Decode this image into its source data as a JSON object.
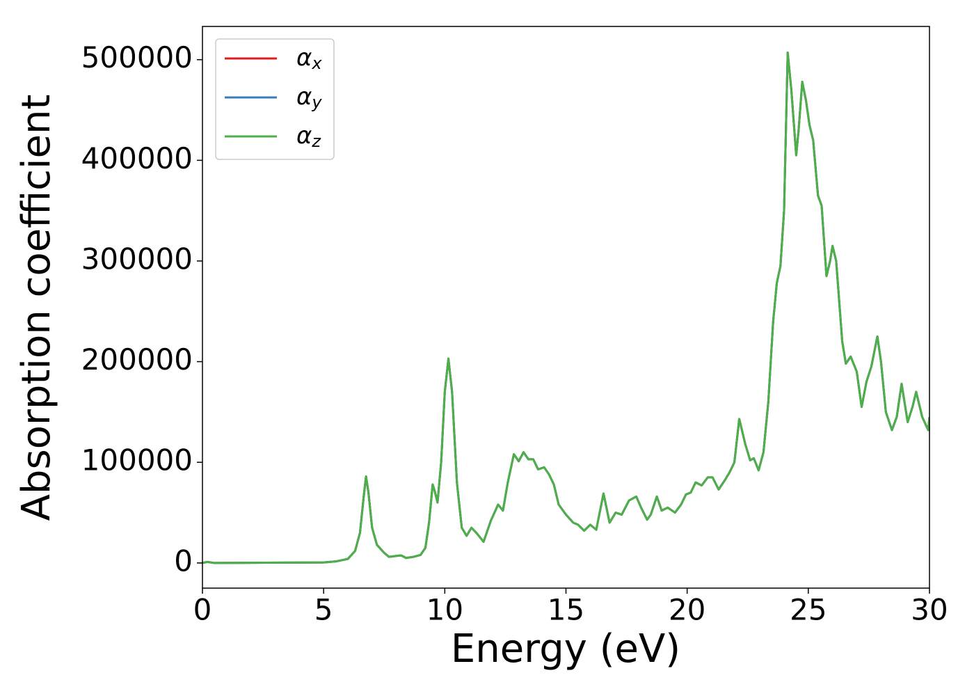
{
  "chart_data": {
    "type": "line",
    "xlabel": "Energy (eV)",
    "ylabel": "Absorption coefficient",
    "x": [
      0,
      0.2,
      0.5,
      5,
      5.5,
      6,
      6.3,
      6.5,
      6.65,
      6.75,
      6.85,
      7.0,
      7.2,
      7.5,
      7.7,
      8.0,
      8.2,
      8.4,
      8.7,
      9.0,
      9.2,
      9.35,
      9.5,
      9.6,
      9.7,
      9.85,
      10.0,
      10.15,
      10.3,
      10.5,
      10.7,
      10.9,
      11.1,
      11.3,
      11.6,
      11.9,
      12.2,
      12.4,
      12.6,
      12.85,
      13.05,
      13.25,
      13.45,
      13.65,
      13.85,
      14.1,
      14.3,
      14.5,
      14.7,
      15.0,
      15.3,
      15.5,
      15.75,
      16.0,
      16.25,
      16.55,
      16.8,
      17.05,
      17.3,
      17.6,
      17.9,
      18.1,
      18.35,
      18.5,
      18.75,
      18.95,
      19.2,
      19.5,
      19.75,
      19.95,
      20.15,
      20.35,
      20.6,
      20.85,
      21.05,
      21.3,
      21.55,
      21.75,
      21.95,
      22.15,
      22.4,
      22.6,
      22.75,
      22.95,
      23.15,
      23.35,
      23.55,
      23.7,
      23.85,
      24.0,
      24.15,
      24.3,
      24.5,
      24.6,
      24.75,
      24.9,
      25.05,
      25.2,
      25.4,
      25.55,
      25.75,
      25.9,
      26.0,
      26.15,
      26.4,
      26.55,
      26.75,
      27.0,
      27.2,
      27.4,
      27.6,
      27.85,
      28.0,
      28.2,
      28.45,
      28.65,
      28.85,
      29.1,
      29.3,
      29.45,
      29.7,
      29.95,
      30
    ],
    "series": [
      {
        "name": "αx",
        "color": "#e41a1c",
        "values": [
          0,
          1000,
          0,
          500,
          1500,
          4000,
          12000,
          30000,
          65000,
          86000,
          70000,
          35000,
          18000,
          10000,
          6000,
          7000,
          7500,
          5000,
          6000,
          8000,
          15000,
          40000,
          78000,
          70000,
          60000,
          100000,
          170000,
          203000,
          170000,
          80000,
          35000,
          27000,
          35000,
          30000,
          21000,
          42000,
          58000,
          52000,
          80000,
          108000,
          101000,
          110000,
          103000,
          103000,
          93000,
          95000,
          88000,
          78000,
          58000,
          48000,
          40000,
          38000,
          32000,
          38000,
          33000,
          69000,
          40000,
          50000,
          48000,
          62000,
          66000,
          55000,
          43000,
          48000,
          66000,
          52000,
          55000,
          50000,
          58000,
          68000,
          70000,
          80000,
          77000,
          85000,
          85000,
          73000,
          82000,
          90000,
          100000,
          143000,
          118000,
          102000,
          104000,
          92000,
          110000,
          160000,
          240000,
          278000,
          295000,
          350000,
          507000,
          470000,
          405000,
          430000,
          478000,
          460000,
          435000,
          420000,
          365000,
          355000,
          285000,
          300000,
          315000,
          300000,
          220000,
          198000,
          205000,
          190000,
          155000,
          180000,
          195000,
          225000,
          200000,
          150000,
          132000,
          145000,
          178000,
          140000,
          155000,
          170000,
          145000,
          132000,
          145000
        ]
      },
      {
        "name": "αy",
        "color": "#377eb8",
        "values": [
          0,
          1000,
          0,
          500,
          1500,
          4000,
          12000,
          30000,
          65000,
          86000,
          70000,
          35000,
          18000,
          10000,
          6000,
          7000,
          7500,
          5000,
          6000,
          8000,
          15000,
          40000,
          78000,
          70000,
          60000,
          100000,
          170000,
          203000,
          170000,
          80000,
          35000,
          27000,
          35000,
          30000,
          21000,
          42000,
          58000,
          52000,
          80000,
          108000,
          101000,
          110000,
          103000,
          103000,
          93000,
          95000,
          88000,
          78000,
          58000,
          48000,
          40000,
          38000,
          32000,
          38000,
          33000,
          69000,
          40000,
          50000,
          48000,
          62000,
          66000,
          55000,
          43000,
          48000,
          66000,
          52000,
          55000,
          50000,
          58000,
          68000,
          70000,
          80000,
          77000,
          85000,
          85000,
          73000,
          82000,
          90000,
          100000,
          143000,
          118000,
          102000,
          104000,
          92000,
          110000,
          160000,
          240000,
          278000,
          295000,
          350000,
          507000,
          470000,
          405000,
          430000,
          478000,
          460000,
          435000,
          420000,
          365000,
          355000,
          285000,
          300000,
          315000,
          300000,
          220000,
          198000,
          205000,
          190000,
          155000,
          180000,
          195000,
          225000,
          200000,
          150000,
          132000,
          145000,
          178000,
          140000,
          155000,
          170000,
          145000,
          132000,
          145000
        ]
      },
      {
        "name": "αz",
        "color": "#4daf4a",
        "values": [
          0,
          1000,
          0,
          500,
          1500,
          4000,
          12000,
          30000,
          65000,
          86000,
          70000,
          35000,
          18000,
          10000,
          6000,
          7000,
          7500,
          5000,
          6000,
          8000,
          15000,
          40000,
          78000,
          70000,
          60000,
          100000,
          170000,
          203000,
          170000,
          80000,
          35000,
          27000,
          35000,
          30000,
          21000,
          42000,
          58000,
          52000,
          80000,
          108000,
          101000,
          110000,
          103000,
          103000,
          93000,
          95000,
          88000,
          78000,
          58000,
          48000,
          40000,
          38000,
          32000,
          38000,
          33000,
          69000,
          40000,
          50000,
          48000,
          62000,
          66000,
          55000,
          43000,
          48000,
          66000,
          52000,
          55000,
          50000,
          58000,
          68000,
          70000,
          80000,
          77000,
          85000,
          85000,
          73000,
          82000,
          90000,
          100000,
          143000,
          118000,
          102000,
          104000,
          92000,
          110000,
          160000,
          240000,
          278000,
          295000,
          350000,
          507000,
          470000,
          405000,
          430000,
          478000,
          460000,
          435000,
          420000,
          365000,
          355000,
          285000,
          300000,
          315000,
          300000,
          220000,
          198000,
          205000,
          190000,
          155000,
          180000,
          195000,
          225000,
          200000,
          150000,
          132000,
          145000,
          178000,
          140000,
          155000,
          170000,
          145000,
          132000,
          145000
        ]
      }
    ],
    "xlim": [
      0,
      30
    ],
    "xticks": [
      0,
      5,
      10,
      15,
      20,
      25,
      30
    ],
    "ylim": [
      -25000,
      533000
    ],
    "yticks": [
      0,
      100000,
      200000,
      300000,
      400000,
      500000
    ],
    "grid": false,
    "legend": "upper left"
  }
}
